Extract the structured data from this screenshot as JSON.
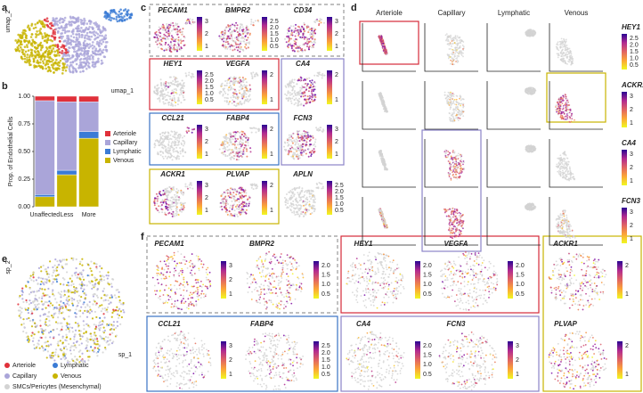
{
  "panel_labels": [
    "a",
    "b",
    "c",
    "d",
    "e",
    "f"
  ],
  "panel_a": {
    "x_label": "umap_1",
    "y_label": "umap_2"
  },
  "chart_data": {
    "type": "bar",
    "stacked": true,
    "y_label": "Prop. of Endothelial Cells",
    "categories": [
      "Unaffected",
      "Less",
      "More"
    ],
    "series": [
      {
        "name": "Arteriole",
        "color": "#e0303a",
        "values": [
          0.04,
          0.05,
          0.05
        ]
      },
      {
        "name": "Capillary",
        "color": "#aaa5d9",
        "values": [
          0.85,
          0.62,
          0.27
        ]
      },
      {
        "name": "Lymphatic",
        "color": "#3a7bd5",
        "values": [
          0.02,
          0.04,
          0.06
        ]
      },
      {
        "name": "Venous",
        "color": "#c8b400",
        "values": [
          0.09,
          0.29,
          0.62
        ]
      }
    ],
    "ylim": [
      0,
      1
    ],
    "yticks": [
      {
        "value": 0,
        "label": "0.00"
      },
      {
        "value": 0.25,
        "label": "0.25"
      },
      {
        "value": 0.5,
        "label": "0.50"
      },
      {
        "value": 0.75,
        "label": "0.75"
      },
      {
        "value": 1,
        "label": "1.00"
      }
    ],
    "legend": "right"
  },
  "panel_c": {
    "maps": [
      {
        "gene": "PECAM1",
        "colorbar": [
          "3",
          "2",
          "1"
        ]
      },
      {
        "gene": "BMPR2",
        "colorbar": [
          "2.5",
          "2.0",
          "1.5",
          "1.0",
          "0.5"
        ]
      },
      {
        "gene": "CD34",
        "colorbar": [
          "3",
          "2",
          "1"
        ]
      },
      {
        "gene": "HEY1",
        "colorbar": [
          "2.5",
          "2.0",
          "1.5",
          "1.0",
          "0.5"
        ]
      },
      {
        "gene": "VEGFA",
        "colorbar": [
          "2",
          "1"
        ]
      },
      {
        "gene": "CA4",
        "colorbar": [
          "2",
          "1"
        ]
      },
      {
        "gene": "CCL21",
        "colorbar": [
          "3",
          "2",
          "1"
        ]
      },
      {
        "gene": "FABP4",
        "colorbar": [
          "2",
          "1"
        ]
      },
      {
        "gene": "FCN3",
        "colorbar": [
          "3",
          "2",
          "1"
        ]
      },
      {
        "gene": "ACKR1",
        "colorbar": [
          "3",
          "2",
          "1"
        ]
      },
      {
        "gene": "PLVAP",
        "colorbar": [
          "2",
          "1"
        ]
      },
      {
        "gene": "APLN",
        "colorbar": [
          "2.5",
          "2.0",
          "1.5",
          "1.0",
          "0.5"
        ]
      }
    ]
  },
  "panel_d": {
    "columns": [
      "Arteriole",
      "Capillary",
      "Lymphatic",
      "Venous"
    ],
    "rows": [
      {
        "gene": "HEY1",
        "colorbar": [
          "2.5",
          "2.0",
          "1.5",
          "1.0",
          "0.5"
        ]
      },
      {
        "gene": "ACKR1",
        "colorbar": [
          "3",
          "2",
          "1"
        ]
      },
      {
        "gene": "CA4",
        "colorbar": [
          "3",
          "2",
          "1"
        ]
      },
      {
        "gene": "FCN3",
        "colorbar": [
          "3",
          "2",
          "1"
        ]
      }
    ]
  },
  "panel_e": {
    "x_label": "sp_1",
    "y_label": "sp_2",
    "legend": [
      "Arteriole",
      "Lymphatic",
      "Capillary",
      "Venous",
      "SMCs/Pericytes (Mesenchymal)"
    ]
  },
  "panel_f": {
    "maps": [
      {
        "gene": "PECAM1",
        "colorbar": [
          "3",
          "2",
          "1"
        ]
      },
      {
        "gene": "BMPR2",
        "colorbar": [
          "2.0",
          "1.5",
          "1.0",
          "0.5"
        ]
      },
      {
        "gene": "HEY1",
        "colorbar": [
          "2.0",
          "1.5",
          "1.0",
          "0.5"
        ]
      },
      {
        "gene": "VEGFA",
        "colorbar": [
          "2.0",
          "1.5",
          "1.0",
          "0.5"
        ]
      },
      {
        "gene": "ACKR1",
        "colorbar": [
          "2",
          "1"
        ]
      },
      {
        "gene": "CCL21",
        "colorbar": [
          "3",
          "2",
          "1"
        ]
      },
      {
        "gene": "FABP4",
        "colorbar": [
          "2.5",
          "2.0",
          "1.5",
          "1.0",
          "0.5"
        ]
      },
      {
        "gene": "CA4",
        "colorbar": [
          "2.0",
          "1.5",
          "1.0",
          "0.5"
        ]
      },
      {
        "gene": "FCN3",
        "colorbar": [
          "3",
          "2",
          "1"
        ]
      },
      {
        "gene": "PLVAP",
        "colorbar": [
          "2",
          "1"
        ]
      }
    ]
  }
}
